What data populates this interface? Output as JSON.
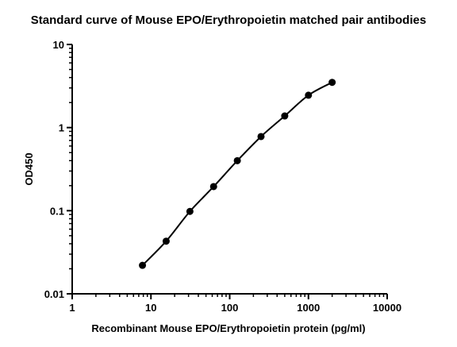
{
  "chart_data": {
    "type": "scatter",
    "title": "Standard curve of Mouse EPO/Erythropoietin matched pair antibodies",
    "xlabel": "Recombinant Mouse EPO/Erythropoietin protein (pg/ml)",
    "ylabel": "OD450",
    "x_scale": "log",
    "y_scale": "log",
    "xlim": [
      1,
      10000
    ],
    "ylim": [
      0.01,
      10
    ],
    "x_ticks": [
      1,
      10,
      100,
      1000,
      10000
    ],
    "x_tick_labels": [
      "1",
      "10",
      "100",
      "1000",
      "10000"
    ],
    "y_ticks": [
      0.01,
      0.1,
      1,
      10
    ],
    "y_tick_labels": [
      "0.01",
      "0.1",
      "1",
      "10"
    ],
    "grid": false,
    "fit_line": true,
    "series": [
      {
        "x": [
          7.8,
          15.6,
          31.25,
          62.5,
          125,
          250,
          500,
          1000,
          2000
        ],
        "y": [
          0.022,
          0.043,
          0.098,
          0.195,
          0.4,
          0.78,
          1.38,
          2.45,
          3.5
        ]
      }
    ]
  }
}
